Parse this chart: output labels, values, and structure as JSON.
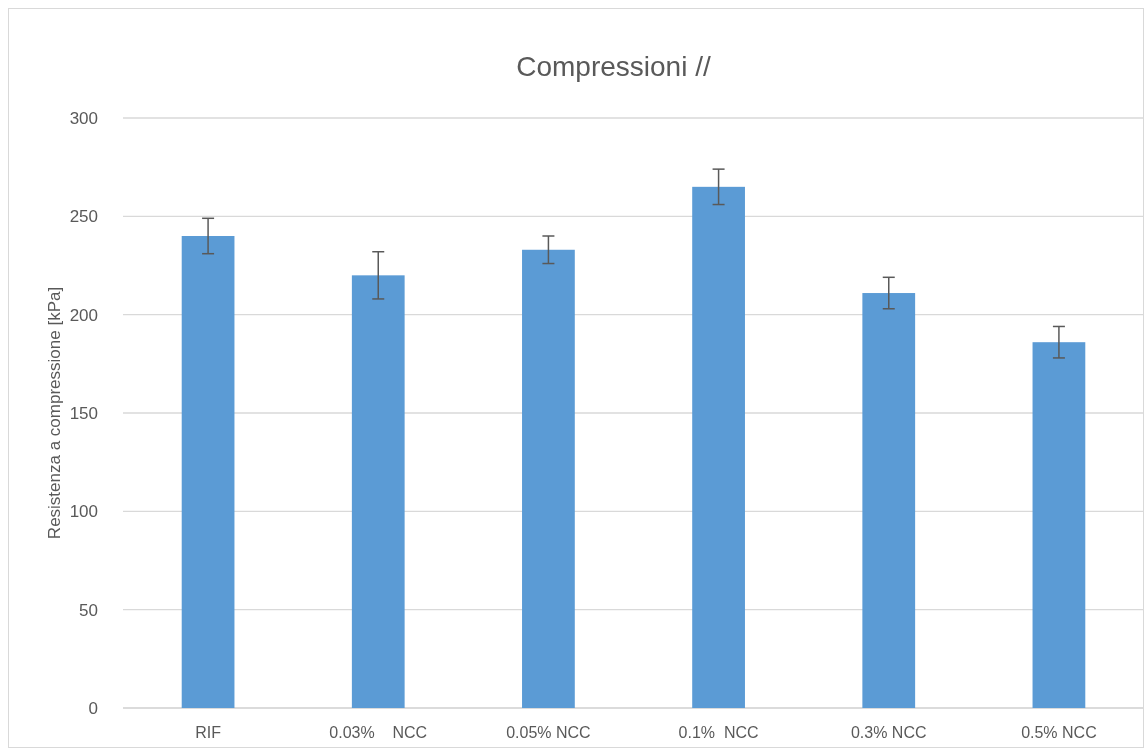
{
  "chart_data": {
    "type": "bar",
    "title": "Compressioni //",
    "ylabel": "Resistenza a compressione [kPa]",
    "categories": [
      "RIF",
      "0.03%    NCC",
      "0.05% NCC",
      "0.1%  NCC",
      "0.3% NCC",
      "0.5% NCC"
    ],
    "values": [
      240,
      220,
      233,
      265,
      211,
      186
    ],
    "errors": [
      9,
      12,
      7,
      9,
      8,
      8
    ],
    "color": "#5b9bd5",
    "ylim": [
      0,
      300
    ],
    "yticks": [
      0,
      50,
      100,
      150,
      200,
      250,
      300
    ],
    "grid": "y"
  }
}
